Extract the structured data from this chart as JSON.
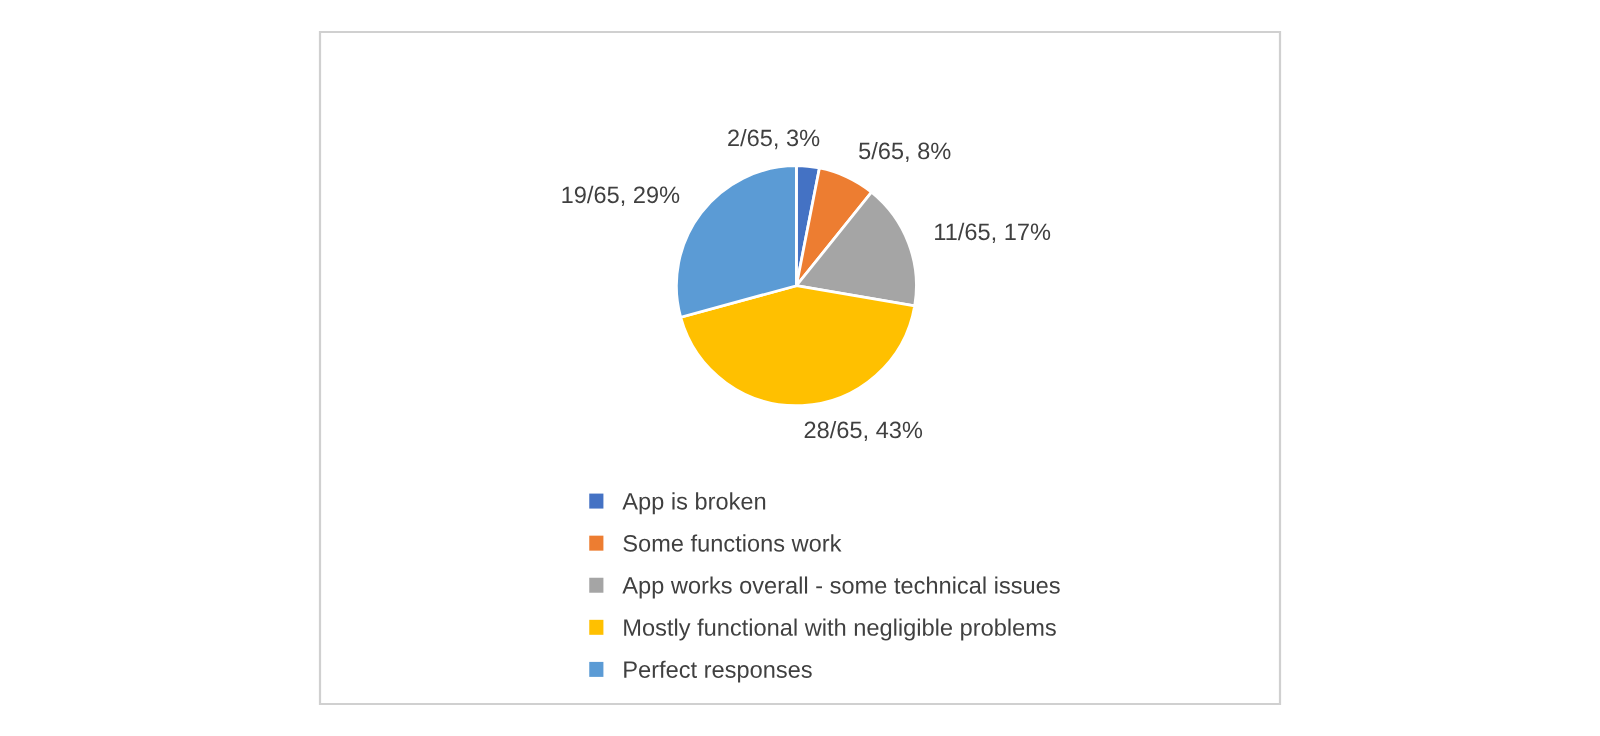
{
  "chart_data": {
    "type": "pie",
    "categories": [
      "App is broken",
      "Some functions work",
      "App works overall - some technical issues",
      "Mostly functional with negligible problems",
      "Perfect responses"
    ],
    "values": [
      2,
      5,
      11,
      28,
      19
    ],
    "value_labels": [
      "2/65, 3%",
      "5/65, 8%",
      "11/65, 17%",
      "28/65, 43%",
      "19/65, 29%"
    ],
    "colors": [
      "#4472c4",
      "#ed7d31",
      "#a5a5a5",
      "#ffc000",
      "#5b9bd5"
    ],
    "legend": "bottom"
  }
}
